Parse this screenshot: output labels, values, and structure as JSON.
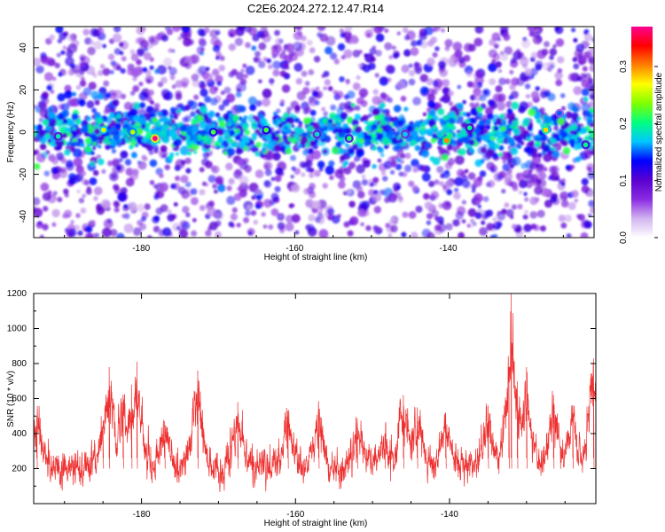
{
  "title": "C2E6.2024.272.12.47.R14",
  "chart_data": [
    {
      "type": "heatmap",
      "xlabel": "Height of straight line (km)",
      "ylabel": "Frequency (Hz)",
      "colorbar_label": "Normalized spectral amplitude",
      "xlim": [
        -194,
        -121
      ],
      "ylim": [
        -50,
        50
      ],
      "xticks": [
        -180,
        -160,
        -140
      ],
      "yticks": [
        40,
        20,
        0,
        -20,
        -40
      ],
      "colorbar_range": [
        0.0,
        0.37
      ],
      "colorbar_ticks": [
        "0.0",
        "0.1",
        "0.2",
        "0.3"
      ],
      "band_center_hz": 0,
      "band_halfwidth_hz": 10,
      "colorscale": [
        "#ffffff",
        "#d2b4f0",
        "#8a2be2",
        "#5a00d0",
        "#0000ff",
        "#00c8ff",
        "#00ff80",
        "#80ff00",
        "#ffff00",
        "#ff8000",
        "#ff0000",
        "#ff0090"
      ],
      "hotspots": [
        {
          "x": -178.2,
          "y": -3,
          "amplitude": 0.37
        },
        {
          "x": -140.2,
          "y": -4,
          "amplitude": 0.3
        },
        {
          "x": -127.3,
          "y": 1,
          "amplitude": 0.28
        },
        {
          "x": -184.9,
          "y": 1,
          "amplitude": 0.26
        },
        {
          "x": -181.1,
          "y": 0,
          "amplitude": 0.25
        },
        {
          "x": -170.6,
          "y": 0,
          "amplitude": 0.22
        },
        {
          "x": -163.7,
          "y": 1,
          "amplitude": 0.22
        },
        {
          "x": -152.9,
          "y": -3,
          "amplitude": 0.21
        },
        {
          "x": -137.2,
          "y": 2,
          "amplitude": 0.2
        },
        {
          "x": -122.1,
          "y": -6,
          "amplitude": 0.2
        },
        {
          "x": -190.8,
          "y": -2,
          "amplitude": 0.19
        },
        {
          "x": -157.1,
          "y": -1,
          "amplitude": 0.18
        },
        {
          "x": -145.6,
          "y": -1,
          "amplitude": 0.17
        },
        {
          "x": -125.5,
          "y": 9,
          "amplitude": 0.15
        }
      ]
    },
    {
      "type": "line",
      "xlabel": "Height of straight line (km)",
      "ylabel": "SNR (10 * v/v)",
      "xlim": [
        -194,
        -121
      ],
      "ylim": [
        0,
        1200
      ],
      "xticks": [
        -180,
        -160,
        -140
      ],
      "yticks": [
        200,
        400,
        600,
        800,
        1000,
        1200
      ],
      "series_color": "#ee3030",
      "baseline_snr": 200,
      "peaks": [
        {
          "x": -193.6,
          "y": 500
        },
        {
          "x": -185.0,
          "y": 420
        },
        {
          "x": -184.2,
          "y": 780
        },
        {
          "x": -182.4,
          "y": 620
        },
        {
          "x": -181.3,
          "y": 680
        },
        {
          "x": -180.6,
          "y": 810
        },
        {
          "x": -177.0,
          "y": 470
        },
        {
          "x": -172.7,
          "y": 760
        },
        {
          "x": -167.5,
          "y": 580
        },
        {
          "x": -161.0,
          "y": 530
        },
        {
          "x": -157.0,
          "y": 550
        },
        {
          "x": -152.0,
          "y": 460
        },
        {
          "x": -148.4,
          "y": 400
        },
        {
          "x": -146.0,
          "y": 620
        },
        {
          "x": -144.2,
          "y": 550
        },
        {
          "x": -140.5,
          "y": 520
        },
        {
          "x": -135.0,
          "y": 560
        },
        {
          "x": -132.3,
          "y": 780
        },
        {
          "x": -132.0,
          "y": 1200
        },
        {
          "x": -131.2,
          "y": 700
        },
        {
          "x": -130.0,
          "y": 780
        },
        {
          "x": -126.5,
          "y": 620
        },
        {
          "x": -124.0,
          "y": 560
        },
        {
          "x": -121.3,
          "y": 830
        }
      ]
    }
  ]
}
